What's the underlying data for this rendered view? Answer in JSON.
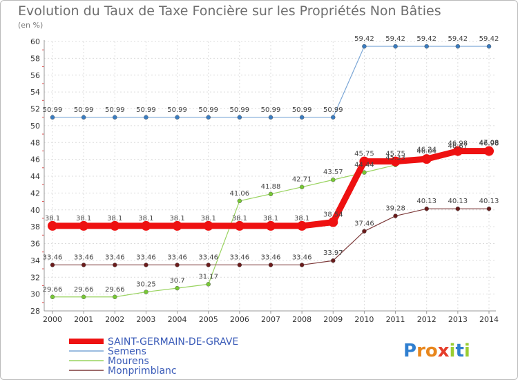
{
  "chart_data": {
    "type": "line",
    "title": "Evolution du Taux de Taxe Foncière sur les Propriétés Non Bâties",
    "subtitle": "(en %)",
    "x": [
      "2000",
      "2001",
      "2002",
      "2003",
      "2004",
      "2005",
      "2006",
      "2007",
      "2008",
      "2009",
      "2010",
      "2011",
      "2012",
      "2013",
      "2014"
    ],
    "ylim": [
      28,
      60
    ],
    "yticks": [
      28,
      30,
      32,
      34,
      36,
      38,
      40,
      42,
      44,
      46,
      48,
      50,
      52,
      54,
      56,
      58,
      60
    ],
    "grid": true,
    "series": [
      {
        "name": "Semens",
        "color": "#7aa6d6",
        "marker": "#3a7cc0",
        "values": [
          50.99,
          50.99,
          50.99,
          50.99,
          50.99,
          50.99,
          50.99,
          50.99,
          50.99,
          50.99,
          59.42,
          59.42,
          59.42,
          59.42,
          59.42
        ],
        "labels": [
          "50.99",
          "50.99",
          "50.99",
          "50.99",
          "50.99",
          "50.99",
          "50.99",
          "50.99",
          "50.99",
          "50.99",
          "59.42",
          "59.42",
          "59.42",
          "59.42",
          "59.42"
        ]
      },
      {
        "name": "Mourens",
        "color": "#99d35f",
        "marker": "#77c835",
        "values": [
          29.66,
          29.66,
          29.66,
          30.25,
          30.7,
          31.17,
          41.06,
          41.88,
          42.71,
          43.57,
          44.44,
          45.33,
          46.24,
          46.67,
          47.08
        ],
        "labels": [
          "29.66",
          "29.66",
          "29.66",
          "30.25",
          "30.7",
          "31.17",
          "41.06",
          "41.88",
          "42.71",
          "43.57",
          "44.44",
          "45.33",
          "46.24",
          "46.67",
          "47.08"
        ]
      },
      {
        "name": "Monprimblanc",
        "color": "#7e3b3b",
        "marker": "#6a1b1b",
        "values": [
          33.46,
          33.46,
          33.46,
          33.46,
          33.46,
          33.46,
          33.46,
          33.46,
          33.46,
          33.97,
          37.46,
          39.28,
          40.13,
          40.13,
          40.13
        ],
        "labels": [
          "33.46",
          "33.46",
          "33.46",
          "33.46",
          "33.46",
          "33.46",
          "33.46",
          "33.46",
          "33.46",
          "33.97",
          "37.46",
          "39.28",
          "40.13",
          "40.13",
          "40.13"
        ]
      },
      {
        "name": "SAINT-GERMAIN-DE-GRAVE",
        "color": "#ee1111",
        "marker": "#ee1111",
        "values": [
          38.1,
          38.1,
          38.1,
          38.1,
          38.1,
          38.1,
          38.1,
          38.1,
          38.1,
          38.54,
          45.75,
          45.75,
          46.04,
          46.98,
          46.98
        ],
        "labels": [
          "38.1",
          "38.1",
          "38.1",
          "38.1",
          "38.1",
          "38.1",
          "38.1",
          "38.1",
          "38.1",
          "38.54",
          "45.75",
          "45.75",
          "46.04",
          "46.98",
          "46.98"
        ]
      }
    ],
    "legend": [
      "SAINT-GERMAIN-DE-GRAVE",
      "Semens",
      "Mourens",
      "Monprimblanc"
    ],
    "legend_position": "bottom-left"
  },
  "logo": {
    "letters": [
      "P",
      "r",
      "o",
      "x",
      "i",
      "t",
      "i"
    ],
    "colors": [
      "#2f7fd0",
      "#e8861c",
      "#e8861c",
      "#e53d2a",
      "#9acd32",
      "#2f7fd0",
      "#9acd32"
    ]
  }
}
